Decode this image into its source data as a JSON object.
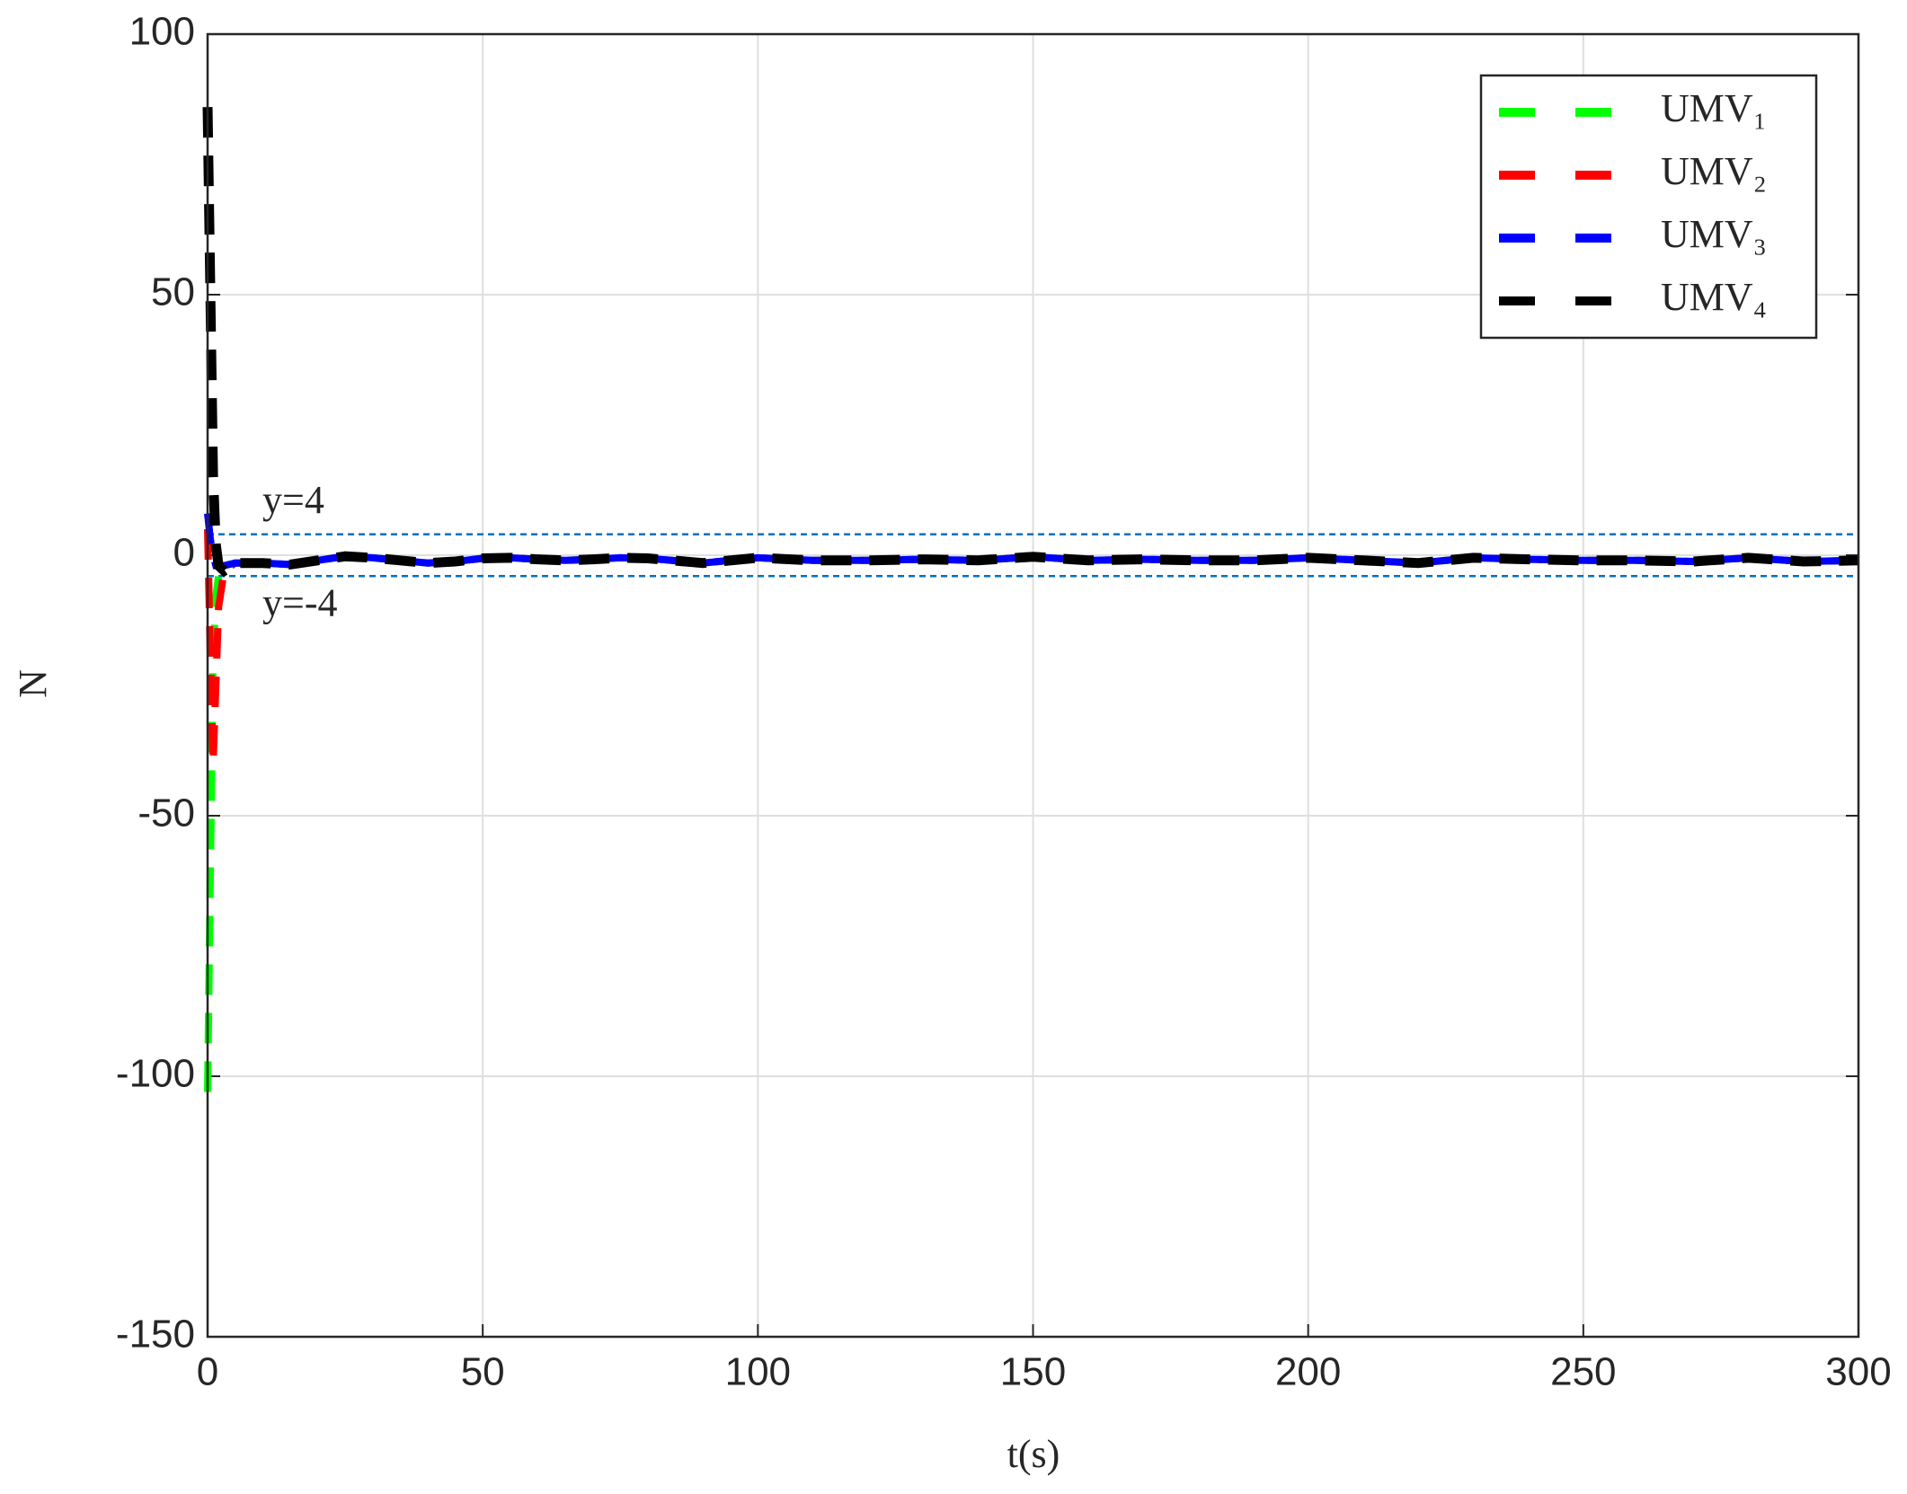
{
  "chart_data": {
    "type": "line",
    "x_label": "t(s)",
    "y_label": "N",
    "x": [
      0,
      0.5,
      1,
      1.5,
      2,
      3,
      5,
      10,
      15,
      20,
      25,
      30,
      35,
      40,
      45,
      50,
      55,
      60,
      65,
      70,
      75,
      80,
      90,
      100,
      110,
      120,
      130,
      140,
      150,
      160,
      170,
      180,
      190,
      200,
      210,
      220,
      230,
      240,
      250,
      260,
      270,
      280,
      290,
      300
    ],
    "series": [
      {
        "name": "UMV₁",
        "color": "#00ff00",
        "values": [
          -103,
          -60,
          -20,
          -8,
          -4,
          -3,
          -1.5,
          -1.5,
          -1.8,
          -1,
          -0.2,
          -0.5,
          -1,
          -1.5,
          -1.2,
          -0.6,
          -0.5,
          -0.8,
          -1,
          -0.8,
          -0.5,
          -0.6,
          -1.5,
          -0.5,
          -1,
          -1,
          -0.8,
          -1,
          -0.3,
          -1,
          -0.8,
          -1,
          -1,
          -0.5,
          -1,
          -1.5,
          -0.5,
          -0.8,
          -1,
          -1,
          -1.2,
          -0.5,
          -1.2,
          -1
        ]
      },
      {
        "name": "UMV₂",
        "color": "#ff0000",
        "values": [
          5,
          -20,
          -40,
          -25,
          -10,
          -3,
          -1.5,
          -1.5,
          -1.8,
          -1,
          -0.2,
          -0.5,
          -1,
          -1.5,
          -1.2,
          -0.6,
          -0.5,
          -0.8,
          -1,
          -0.8,
          -0.5,
          -0.6,
          -1.5,
          -0.5,
          -1,
          -1,
          -0.8,
          -1,
          -0.3,
          -1,
          -0.8,
          -1,
          -1,
          -0.5,
          -1,
          -1.5,
          -0.5,
          -0.8,
          -1,
          -1,
          -1.2,
          -0.5,
          -1.2,
          -1
        ]
      },
      {
        "name": "UMV₃",
        "color": "#0000ff",
        "values": [
          8,
          3,
          0,
          -2,
          -2,
          -2,
          -1.5,
          -1.5,
          -1.8,
          -1,
          -0.2,
          -0.5,
          -1,
          -1.5,
          -1.2,
          -0.6,
          -0.5,
          -0.8,
          -1,
          -0.8,
          -0.5,
          -0.6,
          -1.5,
          -0.5,
          -1,
          -1,
          -0.8,
          -1,
          -0.3,
          -1,
          -0.8,
          -1,
          -1,
          -0.5,
          -1,
          -1.5,
          -0.5,
          -0.8,
          -1,
          -1,
          -1.2,
          -0.5,
          -1.2,
          -1
        ]
      },
      {
        "name": "UMV₄",
        "color": "#000000",
        "values": [
          86,
          50,
          15,
          2,
          -2,
          -3,
          -1.5,
          -1.5,
          -1.8,
          -1,
          -0.2,
          -0.5,
          -1,
          -1.5,
          -1.2,
          -0.6,
          -0.5,
          -0.8,
          -1,
          -0.8,
          -0.5,
          -0.6,
          -1.5,
          -0.5,
          -1,
          -1,
          -0.8,
          -1,
          -0.3,
          -1,
          -0.8,
          -1,
          -1,
          -0.5,
          -1,
          -1.5,
          -0.5,
          -0.8,
          -1,
          -1,
          -1.2,
          -0.5,
          -1.2,
          -1
        ]
      }
    ],
    "reference_lines": [
      {
        "value": 4,
        "label": "y=4",
        "color": "#0072bd"
      },
      {
        "value": -4,
        "label": "y=-4",
        "color": "#0072bd"
      }
    ],
    "xlim": [
      0,
      300
    ],
    "xticks": [
      0,
      50,
      100,
      150,
      200,
      250,
      300
    ],
    "ylim": [
      -150,
      100
    ],
    "yticks": [
      -150,
      -100,
      -50,
      0,
      50,
      100
    ],
    "grid": true,
    "legend": "upper right"
  }
}
